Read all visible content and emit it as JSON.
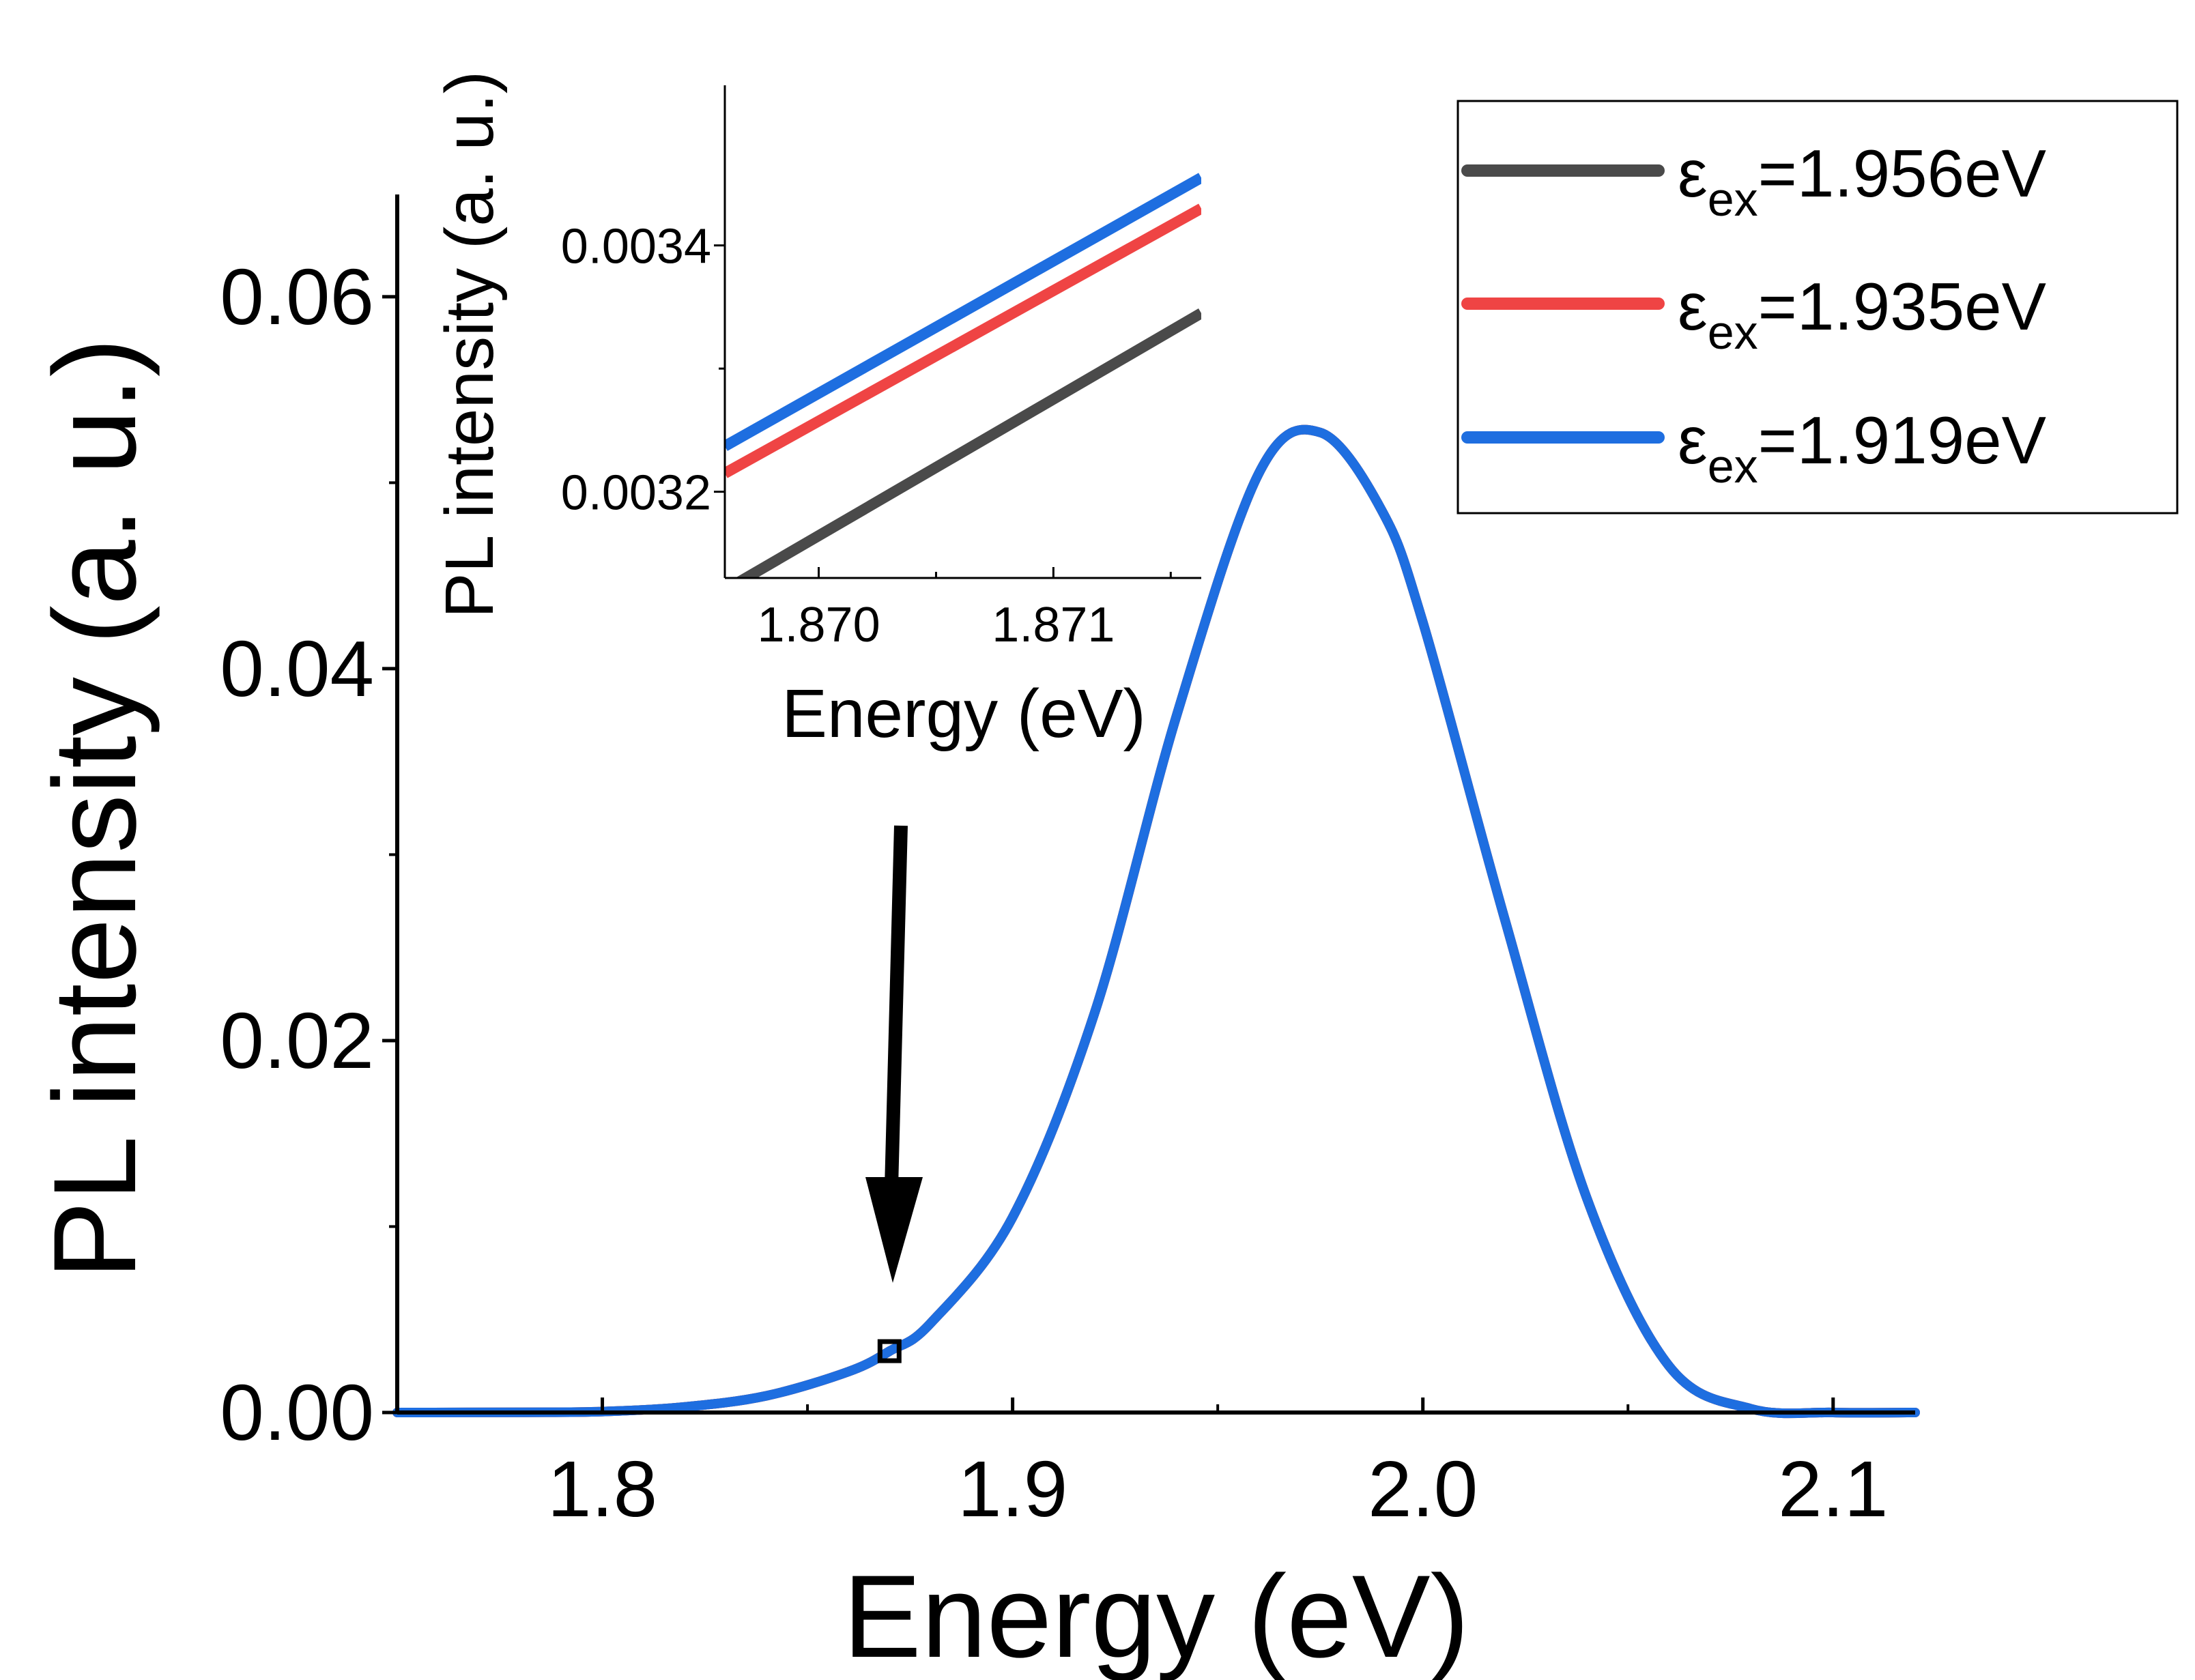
{
  "chart_data": [
    {
      "type": "line",
      "title": "",
      "xlabel": "Energy (eV)",
      "ylabel": "PL intensity (a. u.)",
      "xlim": [
        1.75,
        2.12
      ],
      "ylim": [
        0.0,
        0.0655
      ],
      "x_ticks": [
        1.8,
        1.9,
        2.0,
        2.1
      ],
      "x_tick_labels": [
        "1.8",
        "1.9",
        "2.0",
        "2.1"
      ],
      "x_minor_ticks": [
        1.85,
        1.95,
        2.05
      ],
      "y_ticks": [
        0.0,
        0.02,
        0.04,
        0.06
      ],
      "y_tick_labels": [
        "0.00",
        "0.02",
        "0.04",
        "0.06"
      ],
      "y_minor_ticks": [
        0.01,
        0.03,
        0.05
      ],
      "grid": false,
      "legend_position": "top-right",
      "series": [
        {
          "name": "ε_ex=1.956eV",
          "legend_main": "ε",
          "legend_sub": "ex",
          "legend_value": "=1.956eV",
          "color": "#4a4a4a",
          "x": [
            1.75,
            1.78,
            1.8,
            1.82,
            1.84,
            1.86,
            1.87,
            1.88,
            1.9,
            1.92,
            1.94,
            1.96,
            1.975,
            1.99,
            2.0,
            2.02,
            2.04,
            2.06,
            2.08,
            2.1,
            2.12
          ],
          "y": [
            0.0,
            1e-05,
            5e-05,
            0.0003,
            0.0009,
            0.0022,
            0.0033,
            0.0048,
            0.0105,
            0.0215,
            0.0375,
            0.0505,
            0.0527,
            0.0485,
            0.0425,
            0.0265,
            0.0115,
            0.0025,
            0.0002,
            0.0,
            0.0
          ]
        },
        {
          "name": "ε_ex=1.935eV",
          "legend_main": "ε",
          "legend_sub": "ex",
          "legend_value": "=1.935eV",
          "color": "#ef4444",
          "x": [
            1.75,
            1.78,
            1.8,
            1.82,
            1.84,
            1.86,
            1.87,
            1.88,
            1.9,
            1.92,
            1.94,
            1.96,
            1.975,
            1.99,
            2.0,
            2.02,
            2.04,
            2.06,
            2.08,
            2.1,
            2.12
          ],
          "y": [
            0.0,
            1e-05,
            5e-05,
            0.0003,
            0.0009,
            0.0022,
            0.0033,
            0.0048,
            0.0105,
            0.0215,
            0.0375,
            0.0505,
            0.0527,
            0.0485,
            0.0425,
            0.0265,
            0.0115,
            0.0025,
            0.0002,
            0.0,
            0.0
          ]
        },
        {
          "name": "ε_ex=1.919eV",
          "legend_main": "ε",
          "legend_sub": "ex",
          "legend_value": "=1.919eV",
          "color": "#1e6ee0",
          "x": [
            1.75,
            1.78,
            1.8,
            1.82,
            1.84,
            1.86,
            1.87,
            1.88,
            1.9,
            1.92,
            1.94,
            1.96,
            1.975,
            1.99,
            2.0,
            2.02,
            2.04,
            2.06,
            2.08,
            2.1,
            2.12
          ],
          "y": [
            0.0,
            1e-05,
            5e-05,
            0.0003,
            0.0009,
            0.0022,
            0.0033,
            0.0048,
            0.0105,
            0.0215,
            0.0375,
            0.0505,
            0.0527,
            0.0485,
            0.0425,
            0.0265,
            0.0115,
            0.0025,
            0.0002,
            0.0,
            0.0
          ]
        }
      ],
      "annotations": [
        {
          "type": "arrow",
          "points_to": {
            "x": 1.87,
            "y": 0.0033
          },
          "description": "downward arrow pointing at zoomed region"
        },
        {
          "type": "marker-square",
          "x": 1.87,
          "y": 0.0033
        }
      ]
    },
    {
      "type": "line",
      "title": "",
      "xlabel": "Energy (eV)",
      "ylabel": "PL intensity (a. u.)",
      "xlim": [
        1.8696,
        1.87163
      ],
      "ylim": [
        0.00313,
        0.00353
      ],
      "x_ticks": [
        1.87,
        1.871
      ],
      "x_tick_labels": [
        "1.870",
        "1.871"
      ],
      "x_minor_ticks": [
        1.8705,
        1.8715
      ],
      "y_ticks": [
        0.0032,
        0.0034
      ],
      "y_tick_labels": [
        "0.0032",
        "0.0034"
      ],
      "y_minor_ticks": [
        0.0033
      ],
      "grid": false,
      "series": [
        {
          "name": "ε_ex=1.956eV",
          "color": "#4a4a4a",
          "x": [
            1.8696,
            1.87163
          ],
          "y": [
            0.00312,
            0.003345
          ]
        },
        {
          "name": "ε_ex=1.935eV",
          "color": "#ef4444",
          "x": [
            1.8696,
            1.87163
          ],
          "y": [
            0.003215,
            0.00343
          ]
        },
        {
          "name": "ε_ex=1.919eV",
          "color": "#1e6ee0",
          "x": [
            1.8696,
            1.87163
          ],
          "y": [
            0.003237,
            0.003455
          ]
        }
      ]
    }
  ]
}
